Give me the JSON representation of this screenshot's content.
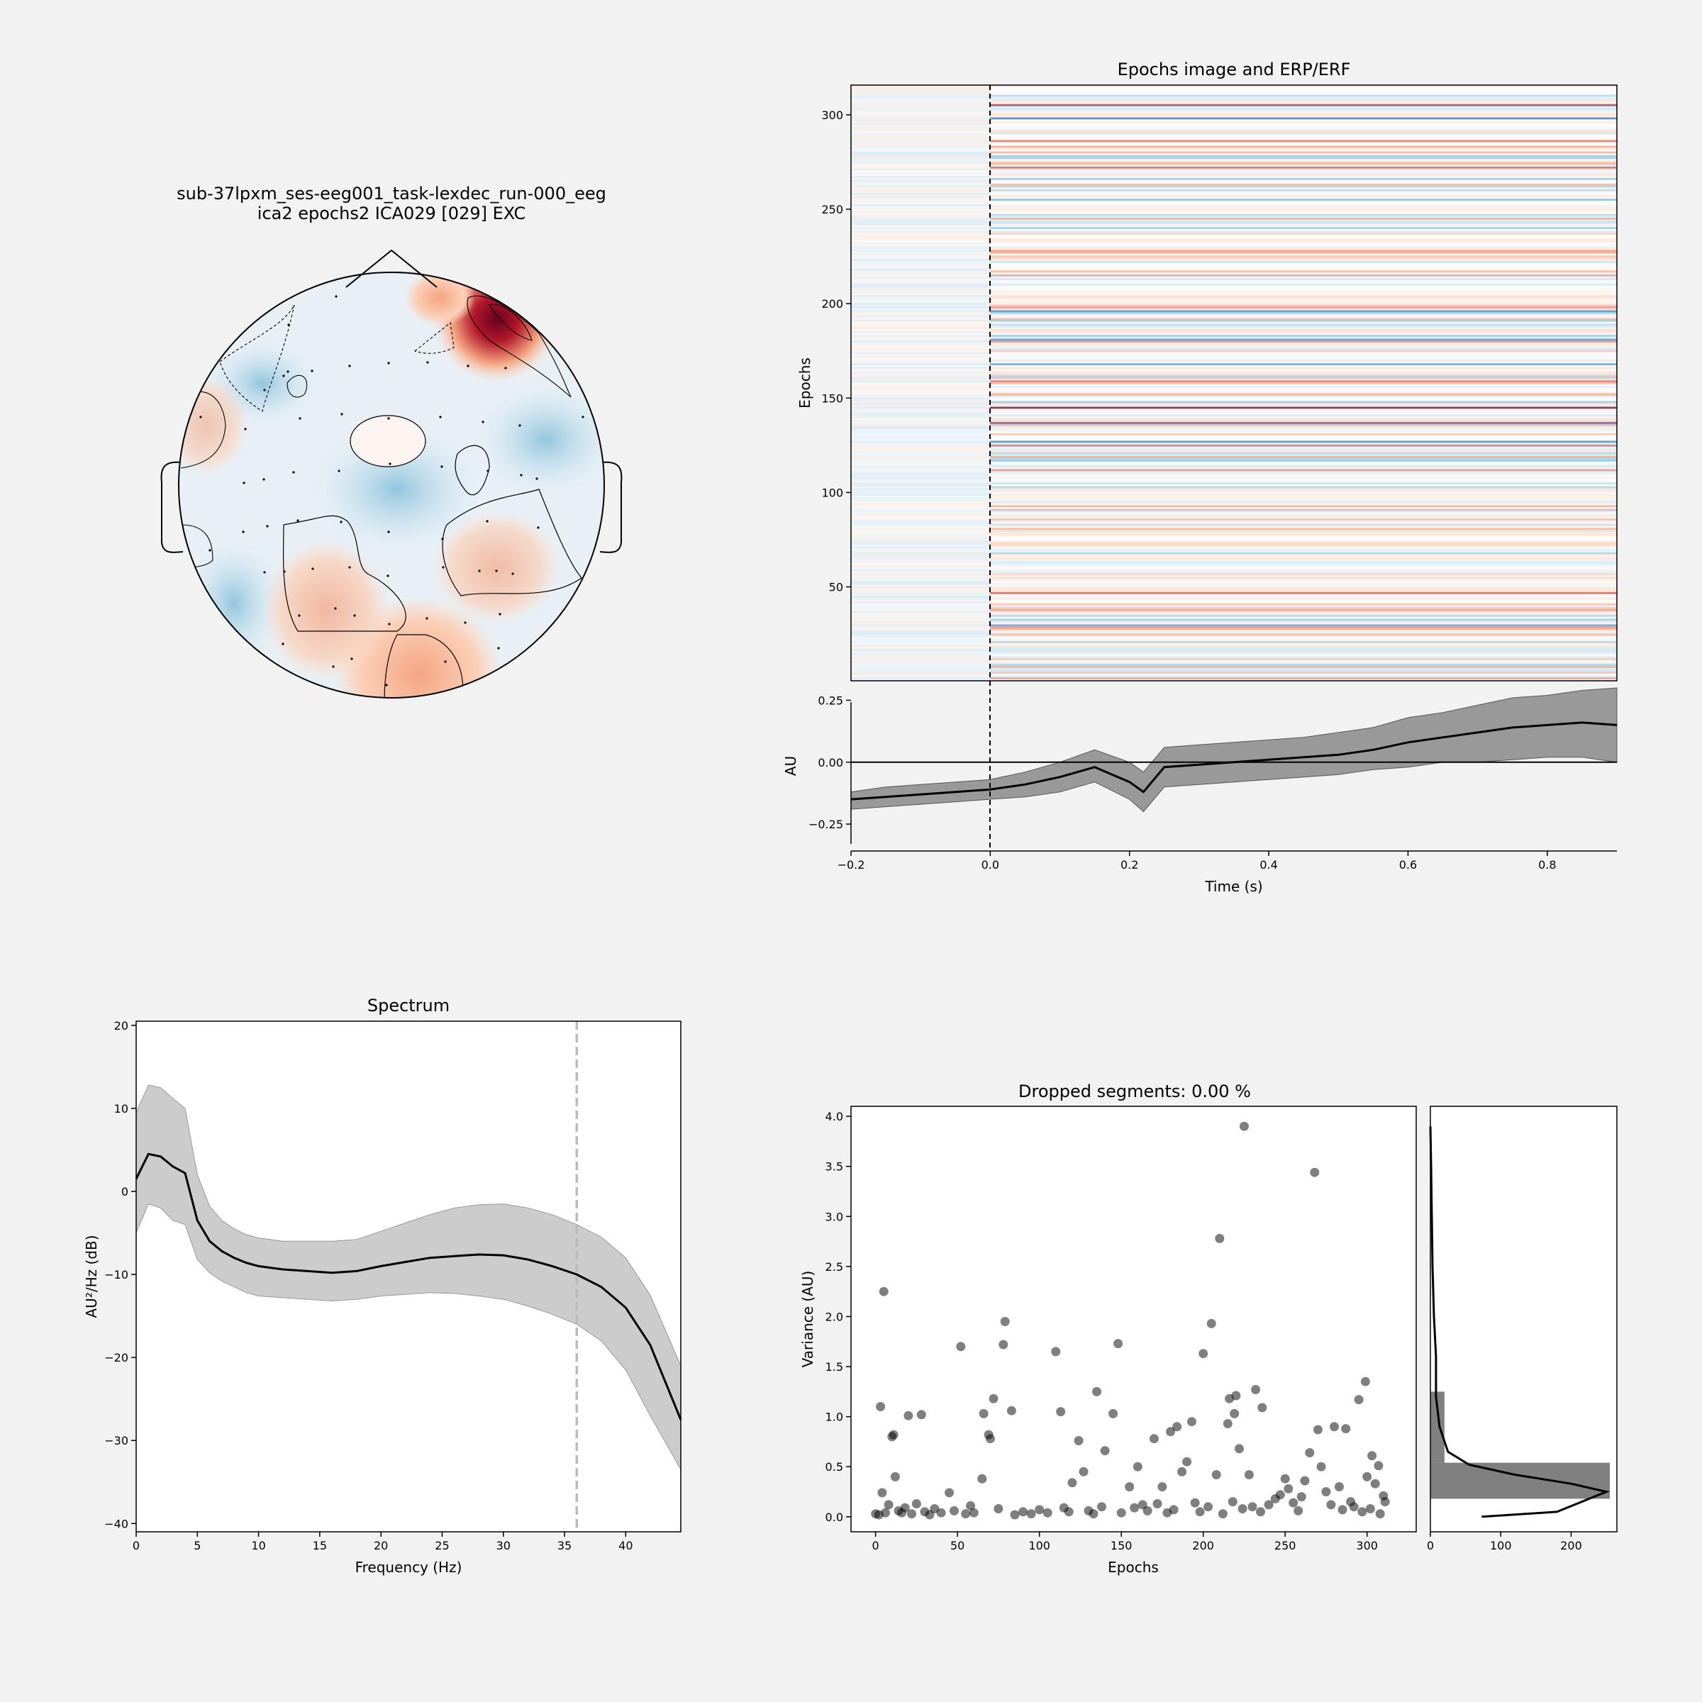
{
  "topomap": {
    "title_line1": "sub-37lpxm_ses-eeg001_task-lexdec_run-000_eeg",
    "title_line2": "ica2 epochs2 ICA029 [029] EXC"
  },
  "chart_data": [
    {
      "type": "heatmap",
      "title": "Epochs image and ERP/ERF",
      "ylabel": "Epochs",
      "ylim": [
        1,
        315
      ],
      "yticks": [
        "50",
        "100",
        "150",
        "200",
        "250",
        "300"
      ],
      "xlim": [
        -0.2,
        0.9
      ],
      "colormap": "RdBu_r",
      "onset_marker_x": 0.0
    },
    {
      "type": "area",
      "title": "",
      "xlabel": "Time (s)",
      "ylabel": "AU",
      "xlim": [
        -0.2,
        0.9
      ],
      "ylim": [
        -0.33,
        0.3
      ],
      "xticks": [
        "−0.2",
        "0.0",
        "0.2",
        "0.4",
        "0.6",
        "0.8"
      ],
      "yticks": [
        "−0.25",
        "0.00",
        "0.25"
      ],
      "x": [
        -0.2,
        -0.15,
        -0.1,
        -0.05,
        0.0,
        0.05,
        0.1,
        0.15,
        0.2,
        0.22,
        0.25,
        0.3,
        0.35,
        0.4,
        0.45,
        0.5,
        0.55,
        0.6,
        0.65,
        0.7,
        0.75,
        0.8,
        0.85,
        0.9
      ],
      "series": [
        {
          "values": [
            -0.15,
            -0.14,
            -0.13,
            -0.12,
            -0.11,
            -0.09,
            -0.06,
            -0.02,
            -0.08,
            -0.12,
            -0.02,
            -0.01,
            0.0,
            0.01,
            0.02,
            0.03,
            0.05,
            0.08,
            0.1,
            0.12,
            0.14,
            0.15,
            0.16,
            0.15
          ],
          "lower": [
            -0.19,
            -0.18,
            -0.17,
            -0.16,
            -0.15,
            -0.14,
            -0.12,
            -0.08,
            -0.15,
            -0.2,
            -0.1,
            -0.09,
            -0.08,
            -0.07,
            -0.06,
            -0.05,
            -0.03,
            -0.02,
            0.0,
            0.0,
            0.01,
            0.02,
            0.02,
            0.0
          ],
          "upper": [
            -0.12,
            -0.1,
            -0.09,
            -0.08,
            -0.07,
            -0.04,
            0.0,
            0.05,
            0.0,
            -0.04,
            0.06,
            0.07,
            0.08,
            0.09,
            0.1,
            0.12,
            0.14,
            0.18,
            0.2,
            0.23,
            0.26,
            0.27,
            0.29,
            0.3
          ]
        }
      ],
      "zero_line": 0.0,
      "onset_marker_x": 0.0
    },
    {
      "type": "line",
      "title": "Spectrum",
      "xlabel": "Frequency (Hz)",
      "ylabel": "AU²/Hz (dB)",
      "xlim": [
        0,
        44.5
      ],
      "ylim": [
        -41,
        20.5
      ],
      "xticks": [
        "0",
        "5",
        "10",
        "15",
        "20",
        "25",
        "30",
        "35",
        "40"
      ],
      "yticks": [
        "20",
        "10",
        "0",
        "−10",
        "−20",
        "−30",
        "−40"
      ],
      "x": [
        0,
        1,
        2,
        3,
        4,
        5,
        6,
        7,
        8,
        9,
        10,
        12,
        14,
        16,
        18,
        20,
        22,
        24,
        26,
        28,
        30,
        32,
        34,
        36,
        38,
        40,
        42,
        44.5
      ],
      "series": [
        {
          "values": [
            1.5,
            4.5,
            4.2,
            3.0,
            2.2,
            -3.5,
            -6.0,
            -7.2,
            -8.0,
            -8.6,
            -9.0,
            -9.4,
            -9.6,
            -9.8,
            -9.6,
            -9.0,
            -8.5,
            -8.0,
            -7.8,
            -7.6,
            -7.7,
            -8.2,
            -9.0,
            -10.0,
            -11.5,
            -14.0,
            -18.5,
            -27.5
          ],
          "lower": [
            -5.0,
            -1.5,
            -2.0,
            -3.5,
            -4.0,
            -8.2,
            -9.8,
            -10.8,
            -11.5,
            -12.2,
            -12.6,
            -12.8,
            -13.0,
            -13.2,
            -13.0,
            -12.6,
            -12.4,
            -12.2,
            -12.3,
            -12.6,
            -13.0,
            -13.8,
            -14.8,
            -16.0,
            -18.0,
            -21.5,
            -27.0,
            -33.5
          ],
          "upper": [
            9.5,
            12.8,
            12.5,
            11.2,
            10.0,
            2.0,
            -1.8,
            -3.5,
            -4.5,
            -5.2,
            -5.6,
            -6.0,
            -6.0,
            -6.0,
            -5.8,
            -4.8,
            -3.8,
            -2.8,
            -2.0,
            -1.6,
            -1.5,
            -2.0,
            -2.8,
            -4.0,
            -5.5,
            -8.0,
            -12.5,
            -21.0
          ]
        }
      ],
      "marker_x": 36
    },
    {
      "type": "scatter",
      "title": "Dropped segments: 0.00 %",
      "xlabel": "Epochs",
      "ylabel": "Variance (AU)",
      "xlim": [
        -15,
        330
      ],
      "ylim": [
        -0.15,
        4.1
      ],
      "xticks": [
        "0",
        "50",
        "100",
        "150",
        "200",
        "250",
        "300"
      ],
      "yticks": [
        "0.0",
        "0.5",
        "1.0",
        "1.5",
        "2.0",
        "2.5",
        "3.0",
        "3.5",
        "4.0"
      ],
      "points": [
        [
          3,
          1.1
        ],
        [
          5,
          2.25
        ],
        [
          10,
          0.8
        ],
        [
          11,
          0.82
        ],
        [
          12,
          0.4
        ],
        [
          20,
          1.01
        ],
        [
          28,
          1.02
        ],
        [
          45,
          0.24
        ],
        [
          52,
          1.7
        ],
        [
          65,
          0.38
        ],
        [
          66,
          1.03
        ],
        [
          69,
          0.82
        ],
        [
          70,
          0.78
        ],
        [
          72,
          1.18
        ],
        [
          78,
          1.72
        ],
        [
          79,
          1.95
        ],
        [
          83,
          1.06
        ],
        [
          110,
          1.65
        ],
        [
          113,
          1.05
        ],
        [
          120,
          0.34
        ],
        [
          124,
          0.76
        ],
        [
          127,
          0.45
        ],
        [
          135,
          1.25
        ],
        [
          140,
          0.66
        ],
        [
          145,
          1.03
        ],
        [
          148,
          1.73
        ],
        [
          155,
          0.3
        ],
        [
          160,
          0.5
        ],
        [
          170,
          0.78
        ],
        [
          175,
          0.3
        ],
        [
          180,
          0.85
        ],
        [
          184,
          0.9
        ],
        [
          187,
          0.45
        ],
        [
          190,
          0.55
        ],
        [
          193,
          0.95
        ],
        [
          200,
          1.63
        ],
        [
          205,
          1.93
        ],
        [
          208,
          0.42
        ],
        [
          210,
          2.78
        ],
        [
          215,
          0.93
        ],
        [
          216,
          1.18
        ],
        [
          219,
          1.03
        ],
        [
          220,
          1.21
        ],
        [
          222,
          0.68
        ],
        [
          225,
          3.9
        ],
        [
          228,
          0.42
        ],
        [
          232,
          1.27
        ],
        [
          236,
          1.09
        ],
        [
          250,
          0.38
        ],
        [
          262,
          0.36
        ],
        [
          265,
          0.64
        ],
        [
          268,
          3.44
        ],
        [
          270,
          0.87
        ],
        [
          272,
          0.5
        ],
        [
          280,
          0.9
        ],
        [
          287,
          0.88
        ],
        [
          295,
          1.17
        ],
        [
          299,
          1.35
        ],
        [
          300,
          0.4
        ],
        [
          303,
          0.61
        ],
        [
          305,
          0.33
        ],
        [
          307,
          0.51
        ],
        [
          310,
          0.21
        ],
        [
          311,
          0.15
        ],
        [
          0,
          0.03
        ],
        [
          2,
          0.02
        ],
        [
          4,
          0.24
        ],
        [
          6,
          0.04
        ],
        [
          8,
          0.12
        ],
        [
          14,
          0.06
        ],
        [
          16,
          0.04
        ],
        [
          18,
          0.09
        ],
        [
          22,
          0.03
        ],
        [
          25,
          0.13
        ],
        [
          30,
          0.05
        ],
        [
          33,
          0.02
        ],
        [
          36,
          0.08
        ],
        [
          40,
          0.04
        ],
        [
          48,
          0.06
        ],
        [
          55,
          0.03
        ],
        [
          58,
          0.11
        ],
        [
          60,
          0.04
        ],
        [
          75,
          0.08
        ],
        [
          85,
          0.02
        ],
        [
          90,
          0.05
        ],
        [
          95,
          0.03
        ],
        [
          100,
          0.07
        ],
        [
          105,
          0.04
        ],
        [
          115,
          0.09
        ],
        [
          118,
          0.05
        ],
        [
          130,
          0.06
        ],
        [
          133,
          0.03
        ],
        [
          138,
          0.1
        ],
        [
          150,
          0.04
        ],
        [
          158,
          0.09
        ],
        [
          163,
          0.12
        ],
        [
          166,
          0.06
        ],
        [
          172,
          0.13
        ],
        [
          178,
          0.04
        ],
        [
          182,
          0.07
        ],
        [
          195,
          0.14
        ],
        [
          198,
          0.05
        ],
        [
          203,
          0.1
        ],
        [
          212,
          0.03
        ],
        [
          218,
          0.15
        ],
        [
          224,
          0.08
        ],
        [
          230,
          0.1
        ],
        [
          235,
          0.05
        ],
        [
          240,
          0.12
        ],
        [
          244,
          0.18
        ],
        [
          247,
          0.22
        ],
        [
          252,
          0.28
        ],
        [
          255,
          0.14
        ],
        [
          258,
          0.06
        ],
        [
          260,
          0.2
        ],
        [
          275,
          0.25
        ],
        [
          278,
          0.12
        ],
        [
          283,
          0.3
        ],
        [
          285,
          0.07
        ],
        [
          290,
          0.15
        ],
        [
          292,
          0.1
        ],
        [
          297,
          0.05
        ],
        [
          302,
          0.08
        ],
        [
          308,
          0.03
        ]
      ]
    },
    {
      "type": "bar",
      "title": "",
      "orientation": "horizontal",
      "xlim": [
        0,
        265
      ],
      "xticks": [
        "0",
        "100",
        "200"
      ],
      "bins": [
        [
          0.18,
          0.54,
          255
        ],
        [
          0.54,
          1.25,
          20
        ],
        [
          1.25,
          4.1,
          0
        ]
      ],
      "kde": [
        [
          73,
          0.0
        ],
        [
          180,
          0.05
        ],
        [
          250,
          0.25
        ],
        [
          200,
          0.33
        ],
        [
          120,
          0.42
        ],
        [
          55,
          0.52
        ],
        [
          25,
          0.65
        ],
        [
          13,
          0.9
        ],
        [
          8,
          1.2
        ],
        [
          8,
          1.6
        ],
        [
          5,
          2.0
        ],
        [
          3,
          2.5
        ],
        [
          2,
          3.0
        ],
        [
          1,
          3.5
        ],
        [
          0,
          3.9
        ]
      ]
    }
  ]
}
